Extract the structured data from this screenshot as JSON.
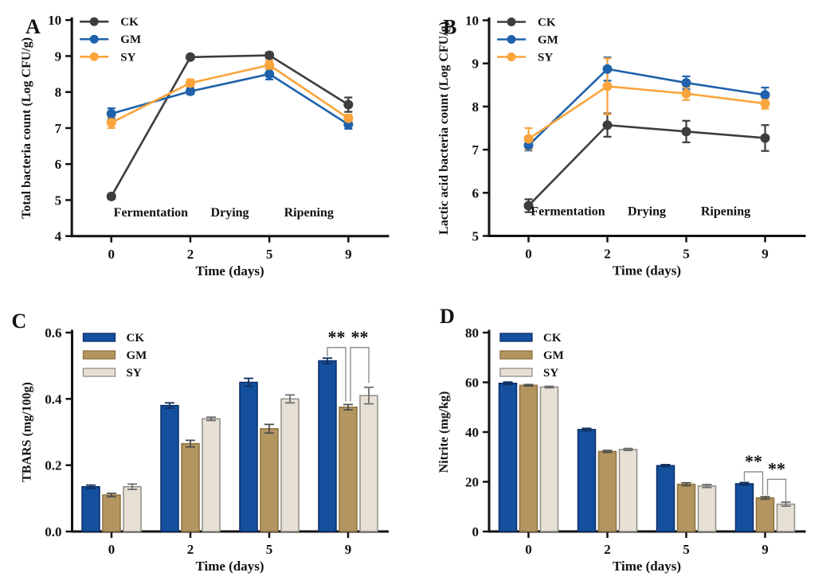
{
  "figure": {
    "background": "#ffffff",
    "description_title": "Four-panel figure",
    "series_names": [
      "CK",
      "GM",
      "SY"
    ]
  },
  "chart_data": [
    {
      "panel_label": "A",
      "type": "line",
      "title": "",
      "xlabel": "Time (days)",
      "ylabel": "Total bacteria count (Log CFU/g)",
      "categories": [
        "0",
        "2",
        "5",
        "9"
      ],
      "ylim": [
        4,
        10
      ],
      "ytick_step": 1,
      "ytick_decimals": 0,
      "grid": false,
      "legend_position": "top-left-inside",
      "label_xy": [
        32,
        42
      ],
      "series": [
        {
          "name": "CK",
          "color": "#3d3d3d",
          "values": [
            5.1,
            8.97,
            9.02,
            7.65
          ],
          "errors": [
            0.07,
            0.06,
            0.08,
            0.2
          ]
        },
        {
          "name": "GM",
          "color": "#1f62ab",
          "values": [
            7.4,
            8.02,
            8.5,
            7.1
          ],
          "errors": [
            0.15,
            0.08,
            0.15,
            0.12
          ]
        },
        {
          "name": "SY",
          "color": "#faa43c",
          "values": [
            7.15,
            8.25,
            8.75,
            7.27
          ],
          "errors": [
            0.15,
            0.1,
            0.12,
            0.1
          ]
        }
      ],
      "phase_annotations": [
        {
          "text": "Fermentation",
          "between": [
            0,
            1
          ],
          "y": 4.55
        },
        {
          "text": "Drying",
          "between": [
            1,
            2
          ],
          "y": 4.55
        },
        {
          "text": "Ripening",
          "between": [
            2,
            3
          ],
          "y": 4.55
        }
      ]
    },
    {
      "panel_label": "B",
      "type": "line",
      "title": "",
      "xlabel": "Time (days)",
      "ylabel": "Lactic acid bacteria count (Log CFU/g)",
      "categories": [
        "0",
        "2",
        "5",
        "9"
      ],
      "ylim": [
        5,
        10
      ],
      "ytick_step": 1,
      "ytick_decimals": 0,
      "grid": false,
      "legend_position": "top-left-inside",
      "label_xy": [
        32,
        42
      ],
      "series": [
        {
          "name": "CK",
          "color": "#3d3d3d",
          "values": [
            5.7,
            7.57,
            7.42,
            7.27
          ],
          "errors": [
            0.15,
            0.27,
            0.25,
            0.3
          ]
        },
        {
          "name": "GM",
          "color": "#1f62ab",
          "values": [
            7.1,
            8.87,
            8.55,
            8.27
          ],
          "errors": [
            0.12,
            0.27,
            0.15,
            0.17
          ]
        },
        {
          "name": "SY",
          "color": "#faa43c",
          "values": [
            7.25,
            8.47,
            8.3,
            8.07
          ],
          "errors": [
            0.25,
            0.65,
            0.15,
            0.12
          ]
        }
      ],
      "phase_annotations": [
        {
          "text": "Fermentation",
          "between": [
            0,
            1
          ],
          "y": 5.48
        },
        {
          "text": "Drying",
          "between": [
            1,
            2
          ],
          "y": 5.48
        },
        {
          "text": "Ripening",
          "between": [
            2,
            3
          ],
          "y": 5.48
        }
      ]
    },
    {
      "panel_label": "C",
      "type": "bar",
      "title": "",
      "xlabel": "Time (days)",
      "ylabel": "TBARS (mg/100g)",
      "categories": [
        "0",
        "2",
        "5",
        "9"
      ],
      "ylim": [
        0,
        0.6
      ],
      "ytick_step": 0.2,
      "ytick_decimals": 1,
      "grid": false,
      "legend_position": "top-left-inside",
      "label_xy": [
        14,
        42
      ],
      "series": [
        {
          "name": "CK",
          "fill": "#14509e",
          "stroke": "#0c2d67",
          "err_color": "#12305f",
          "values": [
            0.135,
            0.38,
            0.45,
            0.515
          ],
          "errors": [
            0.005,
            0.008,
            0.012,
            0.008
          ]
        },
        {
          "name": "GM",
          "fill": "#b3955f",
          "stroke": "#8d7140",
          "err_color": "#4f4f4f",
          "values": [
            0.11,
            0.265,
            0.31,
            0.375
          ],
          "errors": [
            0.005,
            0.01,
            0.013,
            0.008
          ]
        },
        {
          "name": "SY",
          "fill": "#e7e1d5",
          "stroke": "#8f8d85",
          "err_color": "#6e6e6e",
          "values": [
            0.135,
            0.34,
            0.4,
            0.41
          ],
          "errors": [
            0.008,
            0.005,
            0.012,
            0.025
          ]
        }
      ],
      "sig_brackets": [
        {
          "group": 3,
          "s1": 0,
          "s2": 1,
          "y": 0.555,
          "drop1": 0.528,
          "drop2": 0.392,
          "dx1": 0,
          "dx2": -3,
          "label": "**"
        },
        {
          "group": 3,
          "s1": 1,
          "s2": 2,
          "y": 0.555,
          "drop1": 0.392,
          "drop2": 0.448,
          "dx1": 3,
          "dx2": 0,
          "label": "**"
        }
      ]
    },
    {
      "panel_label": "D",
      "type": "bar",
      "title": "",
      "xlabel": "Time (days)",
      "ylabel": "Nitrite (mg/kg)",
      "categories": [
        "0",
        "2",
        "5",
        "9"
      ],
      "ylim": [
        0,
        80
      ],
      "ytick_step": 20,
      "ytick_decimals": 0,
      "grid": false,
      "legend_position": "top-left-inside",
      "label_xy": [
        28,
        36
      ],
      "series": [
        {
          "name": "CK",
          "fill": "#14509e",
          "stroke": "#0c2d67",
          "err_color": "#12305f",
          "values": [
            59.6,
            41,
            26.5,
            19.2
          ],
          "errors": [
            0.5,
            0.5,
            0.4,
            0.5
          ]
        },
        {
          "name": "GM",
          "fill": "#b3955f",
          "stroke": "#8d7140",
          "err_color": "#4f4f4f",
          "values": [
            58.8,
            32.2,
            19,
            13.5
          ],
          "errors": [
            0.3,
            0.4,
            0.6,
            0.5
          ]
        },
        {
          "name": "SY",
          "fill": "#e7e1d5",
          "stroke": "#8f8d85",
          "err_color": "#6e6e6e",
          "values": [
            58.1,
            33,
            18.3,
            11
          ],
          "errors": [
            0.3,
            0.4,
            0.6,
            0.8
          ]
        }
      ],
      "sig_brackets": [
        {
          "group": 3,
          "s1": 0,
          "s2": 1,
          "y": 24,
          "drop1": 20.3,
          "drop2": 14.6,
          "dx1": 0,
          "dx2": -3,
          "label": "**"
        },
        {
          "group": 3,
          "s1": 1,
          "s2": 2,
          "y": 21,
          "drop1": 14.6,
          "drop2": 12.2,
          "dx1": 3,
          "dx2": 0,
          "label": "**"
        }
      ]
    }
  ]
}
